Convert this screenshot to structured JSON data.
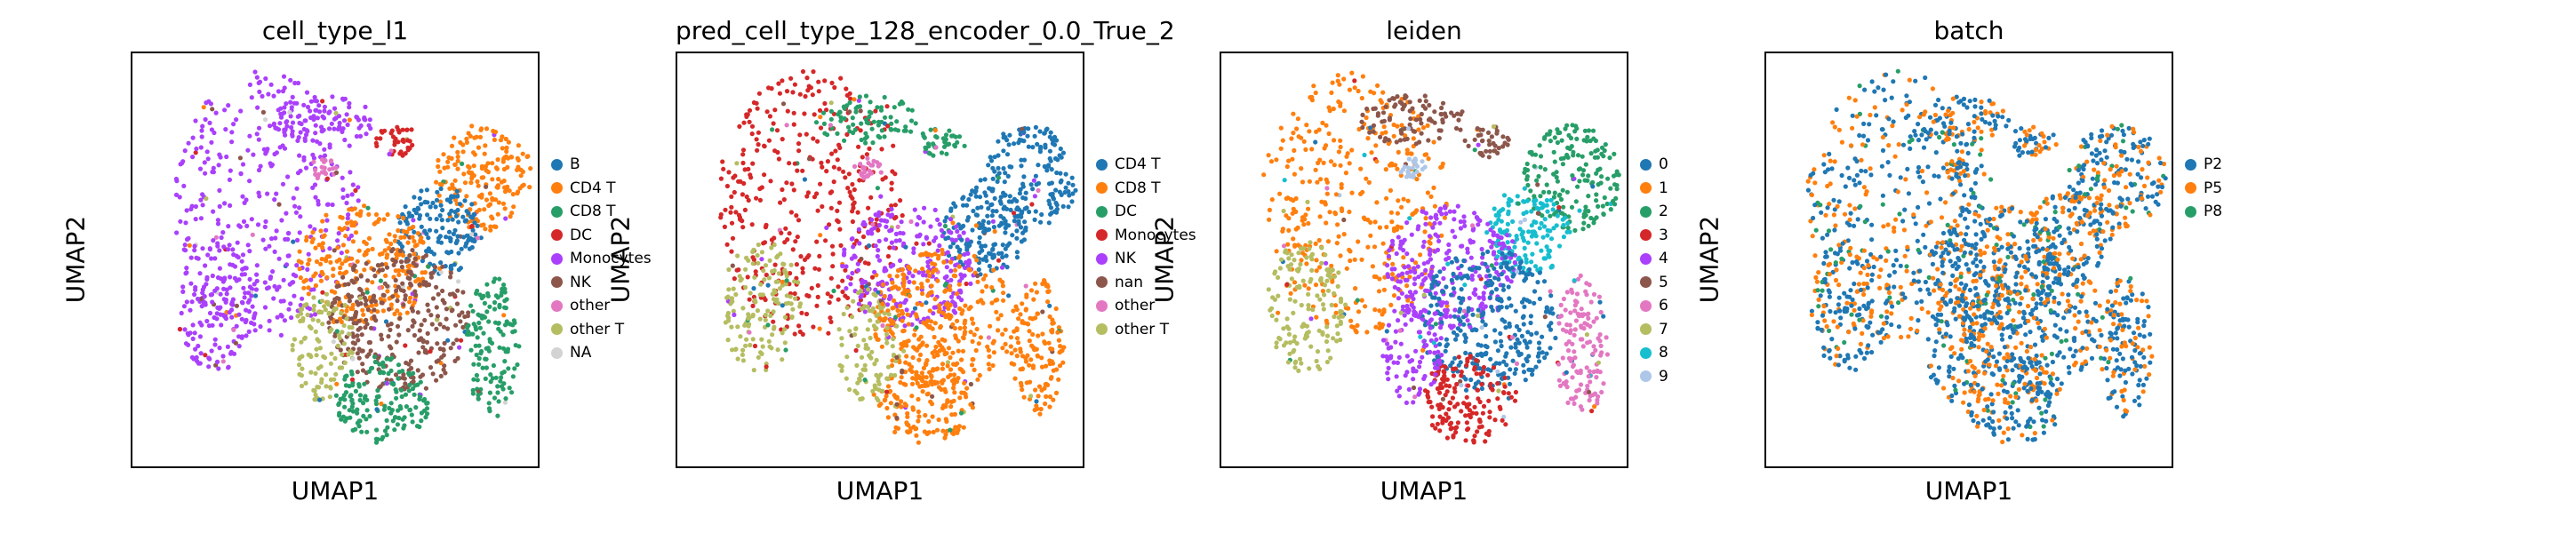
{
  "figure": {
    "panels": [
      {
        "title": "cell_type_l1",
        "xlabel": "UMAP1",
        "ylabel": "UMAP2"
      },
      {
        "title": "pred_cell_type_128_encoder_0.0_True_2",
        "xlabel": "UMAP1",
        "ylabel": "UMAP2"
      },
      {
        "title": "leiden",
        "xlabel": "UMAP1",
        "ylabel": "UMAP2"
      },
      {
        "title": "batch",
        "xlabel": "UMAP1",
        "ylabel": "UMAP2"
      }
    ]
  },
  "chart_data": [
    {
      "type": "scatter",
      "title": "cell_type_l1",
      "xlabel": "UMAP1",
      "ylabel": "UMAP2",
      "axes_ticks": "none",
      "legend_position": "right",
      "legend": [
        {
          "label": "B",
          "color": "#1f77b4"
        },
        {
          "label": "CD4 T",
          "color": "#ff7f0e"
        },
        {
          "label": "CD8 T",
          "color": "#279e68"
        },
        {
          "label": "DC",
          "color": "#d62728"
        },
        {
          "label": "Monocytes",
          "color": "#aa40fc"
        },
        {
          "label": "NK",
          "color": "#8c564b"
        },
        {
          "label": "other",
          "color": "#e377c2"
        },
        {
          "label": "other T",
          "color": "#b5bd61"
        },
        {
          "label": "NA",
          "color": "#d3d3d3"
        }
      ]
    },
    {
      "type": "scatter",
      "title": "pred_cell_type_128_encoder_0.0_True_2",
      "xlabel": "UMAP1",
      "ylabel": "UMAP2",
      "axes_ticks": "none",
      "legend_position": "right",
      "legend": [
        {
          "label": "CD4 T",
          "color": "#1f77b4"
        },
        {
          "label": "CD8 T",
          "color": "#ff7f0e"
        },
        {
          "label": "DC",
          "color": "#279e68"
        },
        {
          "label": "Monocytes",
          "color": "#d62728"
        },
        {
          "label": "NK",
          "color": "#aa40fc"
        },
        {
          "label": "nan",
          "color": "#8c564b"
        },
        {
          "label": "other",
          "color": "#e377c2"
        },
        {
          "label": "other T",
          "color": "#b5bd61"
        }
      ]
    },
    {
      "type": "scatter",
      "title": "leiden",
      "xlabel": "UMAP1",
      "ylabel": "UMAP2",
      "axes_ticks": "none",
      "legend_position": "right",
      "legend": [
        {
          "label": "0",
          "color": "#1f77b4"
        },
        {
          "label": "1",
          "color": "#ff7f0e"
        },
        {
          "label": "2",
          "color": "#279e68"
        },
        {
          "label": "3",
          "color": "#d62728"
        },
        {
          "label": "4",
          "color": "#aa40fc"
        },
        {
          "label": "5",
          "color": "#8c564b"
        },
        {
          "label": "6",
          "color": "#e377c2"
        },
        {
          "label": "7",
          "color": "#b5bd61"
        },
        {
          "label": "8",
          "color": "#17becf"
        },
        {
          "label": "9",
          "color": "#aec7e8"
        }
      ]
    },
    {
      "type": "scatter",
      "title": "batch",
      "xlabel": "UMAP1",
      "ylabel": "UMAP2",
      "axes_ticks": "none",
      "legend_position": "right",
      "legend": [
        {
          "label": "P2",
          "color": "#1f77b4"
        },
        {
          "label": "P5",
          "color": "#ff7f0e"
        },
        {
          "label": "P8",
          "color": "#279e68"
        }
      ]
    }
  ]
}
